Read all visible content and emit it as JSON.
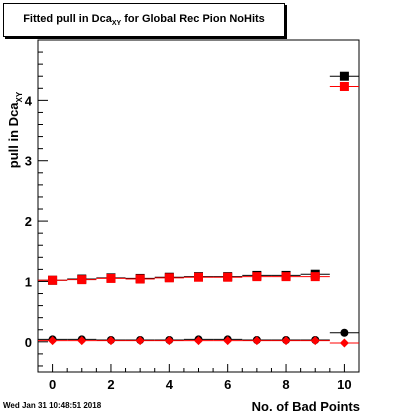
{
  "title_parts": {
    "main": "Fitted pull in Dca",
    "sub": "XY",
    "rest": " for Global Rec Pion NoHits"
  },
  "date_stamp": "Wed Jan 31 10:48:51 2018",
  "chart_data": {
    "type": "scatter",
    "title": "Fitted pull in Dca_XY for Global Rec Pion NoHits",
    "xlabel": "No. of Bad Points",
    "ylabel": "pull in Dca_XY",
    "xlim": [
      -0.5,
      10.5
    ],
    "ylim": [
      -0.5,
      5.0
    ],
    "x_ticks": [
      0,
      2,
      4,
      6,
      8,
      10
    ],
    "y_ticks": [
      0,
      1,
      2,
      3,
      4
    ],
    "grid": false,
    "series": [
      {
        "marker": "square",
        "color": "#000000",
        "x": [
          0,
          1,
          2,
          3,
          4,
          5,
          6,
          7,
          8,
          9,
          10
        ],
        "values": [
          1.02,
          1.04,
          1.06,
          1.05,
          1.07,
          1.08,
          1.08,
          1.1,
          1.1,
          1.12,
          4.4
        ]
      },
      {
        "marker": "square",
        "color": "#ff0000",
        "x": [
          0,
          1,
          2,
          3,
          4,
          5,
          6,
          7,
          8,
          9,
          10
        ],
        "values": [
          1.02,
          1.03,
          1.05,
          1.04,
          1.06,
          1.07,
          1.07,
          1.08,
          1.08,
          1.08,
          4.23
        ]
      },
      {
        "marker": "circle",
        "color": "#000000",
        "x": [
          0,
          1,
          2,
          3,
          4,
          5,
          6,
          7,
          8,
          9,
          10
        ],
        "values": [
          0.04,
          0.04,
          0.03,
          0.03,
          0.03,
          0.04,
          0.04,
          0.03,
          0.03,
          0.03,
          0.15
        ]
      },
      {
        "marker": "diamond",
        "color": "#ff0000",
        "x": [
          0,
          1,
          2,
          3,
          4,
          5,
          6,
          7,
          8,
          9,
          10
        ],
        "values": [
          0.02,
          0.02,
          0.02,
          0.02,
          0.02,
          0.02,
          0.02,
          0.02,
          0.02,
          0.02,
          -0.02
        ]
      }
    ]
  }
}
